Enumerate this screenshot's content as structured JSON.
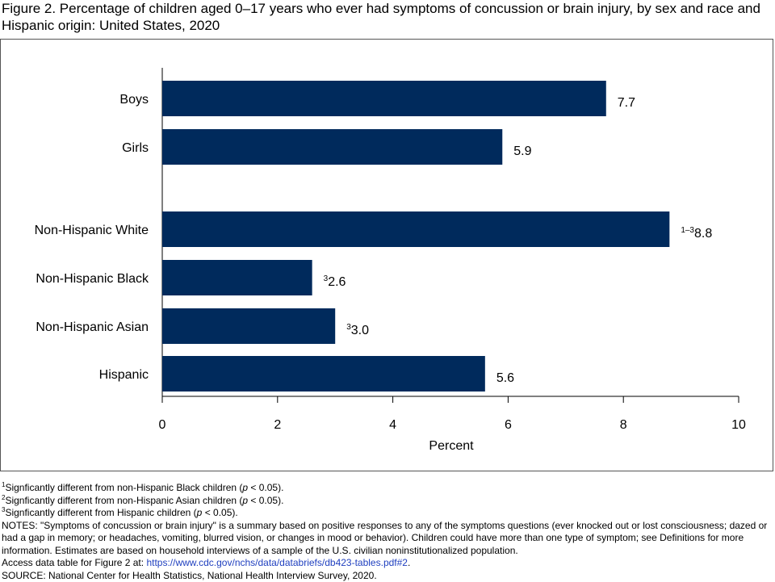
{
  "title": "Figure 2. Percentage of children aged 0–17 years who ever had symptoms of concussion or brain injury, by sex and race and Hispanic origin: United States, 2020",
  "chart_data": {
    "type": "bar",
    "orientation": "horizontal",
    "categories": [
      "Boys",
      "Girls",
      "Non-Hispanic White",
      "Non-Hispanic Black",
      "Non-Hispanic Asian",
      "Hispanic"
    ],
    "groups": [
      [
        "Boys",
        "Girls"
      ],
      [
        "Non-Hispanic White",
        "Non-Hispanic Black",
        "Non-Hispanic Asian",
        "Hispanic"
      ]
    ],
    "values": [
      7.7,
      5.9,
      8.8,
      2.6,
      3.0,
      5.6
    ],
    "value_labels": [
      "7.7",
      "5.9",
      "8.8",
      "2.6",
      "3.0",
      "5.6"
    ],
    "label_superscripts": [
      "",
      "",
      "1–3",
      "3",
      "3",
      ""
    ],
    "xlabel": "Percent",
    "ylabel": "",
    "xlim": [
      0,
      10
    ],
    "xticks": [
      0,
      2,
      4,
      6,
      8,
      10
    ],
    "xtick_labels": [
      "0",
      "2",
      "4",
      "6",
      "8",
      "10"
    ],
    "bar_color": "#002a5c",
    "grid": false
  },
  "footnotes": [
    {
      "sup": "1",
      "before": "Signficantly different from non-Hispanic Black children (",
      "italic": "p",
      "after": " < 0.05)."
    },
    {
      "sup": "2",
      "before": "Signficantly different from non-Hispanic Asian children (",
      "italic": "p",
      "after": " < 0.05)."
    },
    {
      "sup": "3",
      "before": "Signficantly different from Hispanic children (",
      "italic": "p",
      "after": " < 0.05)."
    }
  ],
  "notes": "NOTES: \"Symptoms of concussion or brain injury\" is a summary based on positive responses to any of the symptoms questions (ever knocked out or lost consciousness; dazed or had a gap in memory; or headaches, vomiting, blurred vision, or changes in mood or behavior). Children could have more than one type of symptom; see Definitions for more information. Estimates are based on household interviews of a sample of the U.S. civilian noninstitutionalized population.",
  "access": {
    "prefix": "Access data table for Figure 2 at: ",
    "link": "https://www.cdc.gov/nchs/data/databriefs/db423-tables.pdf#2",
    "suffix": "."
  },
  "source": "SOURCE: National Center for Health Statistics, National Health Interview Survey, 2020."
}
